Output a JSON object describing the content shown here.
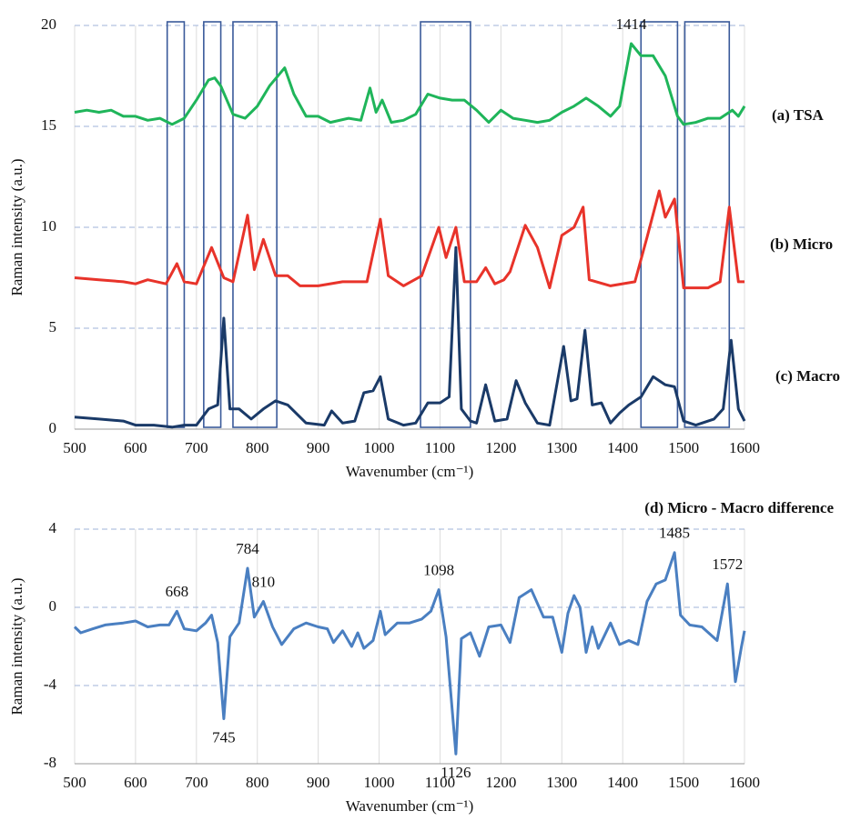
{
  "chart_data": [
    {
      "type": "line",
      "xlabel": "Wavenumber (cm⁻¹)",
      "ylabel": "Raman intensity (a.u.)",
      "xlim": [
        500,
        1600
      ],
      "xticks": [
        500,
        600,
        700,
        800,
        900,
        1000,
        1100,
        1200,
        1300,
        1400,
        1500,
        1600
      ],
      "ylim": [
        0,
        20
      ],
      "yticks": [
        0,
        5,
        10,
        15,
        20
      ],
      "grid": true,
      "regions": [
        [
          652,
          680
        ],
        [
          712,
          740
        ],
        [
          760,
          832
        ],
        [
          1068,
          1150
        ],
        [
          1430,
          1490
        ],
        [
          1502,
          1575
        ]
      ],
      "region_color": "#3a5a9a",
      "series": [
        {
          "name": "(a) TSA",
          "color": "#1fb55a",
          "x": [
            500,
            520,
            540,
            560,
            580,
            600,
            620,
            640,
            660,
            680,
            700,
            720,
            730,
            740,
            760,
            780,
            800,
            820,
            845,
            860,
            880,
            900,
            920,
            950,
            970,
            985,
            995,
            1005,
            1020,
            1040,
            1060,
            1080,
            1100,
            1120,
            1140,
            1160,
            1180,
            1200,
            1220,
            1240,
            1260,
            1280,
            1300,
            1320,
            1340,
            1360,
            1380,
            1395,
            1414,
            1430,
            1450,
            1470,
            1490,
            1500,
            1520,
            1540,
            1560,
            1580,
            1590,
            1600
          ],
          "values": [
            15.7,
            15.8,
            15.7,
            15.8,
            15.5,
            15.5,
            15.3,
            15.4,
            15.1,
            15.4,
            16.3,
            17.3,
            17.4,
            17.0,
            15.6,
            15.4,
            16.0,
            17.0,
            17.9,
            16.6,
            15.5,
            15.5,
            15.2,
            15.4,
            15.3,
            16.9,
            15.7,
            16.3,
            15.2,
            15.3,
            15.6,
            16.6,
            16.4,
            16.3,
            16.3,
            15.8,
            15.2,
            15.8,
            15.4,
            15.3,
            15.2,
            15.3,
            15.7,
            16.0,
            16.4,
            16.0,
            15.5,
            16.0,
            19.1,
            18.5,
            18.5,
            17.5,
            15.5,
            15.1,
            15.2,
            15.4,
            15.4,
            15.8,
            15.5,
            16.0
          ]
        },
        {
          "name": "(b) Micro",
          "color": "#e8332a",
          "x": [
            500,
            540,
            580,
            600,
            620,
            650,
            668,
            680,
            700,
            725,
            745,
            760,
            784,
            795,
            810,
            830,
            850,
            870,
            900,
            940,
            980,
            1002,
            1015,
            1040,
            1070,
            1098,
            1110,
            1126,
            1140,
            1160,
            1175,
            1190,
            1205,
            1215,
            1240,
            1260,
            1280,
            1300,
            1320,
            1335,
            1345,
            1380,
            1420,
            1440,
            1460,
            1470,
            1485,
            1500,
            1540,
            1560,
            1575,
            1590,
            1600
          ],
          "values": [
            7.5,
            7.4,
            7.3,
            7.2,
            7.4,
            7.2,
            8.2,
            7.3,
            7.2,
            9.0,
            7.5,
            7.3,
            10.6,
            7.9,
            9.4,
            7.6,
            7.6,
            7.1,
            7.1,
            7.3,
            7.3,
            10.4,
            7.6,
            7.1,
            7.6,
            10.0,
            8.5,
            10.0,
            7.3,
            7.3,
            8.0,
            7.2,
            7.4,
            7.8,
            10.1,
            9.0,
            7.0,
            9.6,
            10.0,
            11.0,
            7.4,
            7.1,
            7.3,
            9.5,
            11.8,
            10.5,
            11.4,
            7.0,
            7.0,
            7.3,
            11.0,
            7.3,
            7.3
          ]
        },
        {
          "name": "(c) Macro",
          "color": "#1a3a68",
          "x": [
            500,
            540,
            580,
            600,
            630,
            660,
            680,
            700,
            720,
            735,
            745,
            755,
            770,
            790,
            810,
            830,
            850,
            880,
            910,
            922,
            940,
            960,
            975,
            990,
            1002,
            1015,
            1040,
            1060,
            1080,
            1100,
            1115,
            1126,
            1135,
            1150,
            1160,
            1175,
            1190,
            1210,
            1225,
            1240,
            1260,
            1280,
            1303,
            1315,
            1325,
            1338,
            1350,
            1365,
            1380,
            1395,
            1410,
            1430,
            1450,
            1470,
            1485,
            1500,
            1520,
            1550,
            1565,
            1578,
            1590,
            1600
          ],
          "values": [
            0.6,
            0.5,
            0.4,
            0.2,
            0.2,
            0.1,
            0.2,
            0.2,
            1.0,
            1.2,
            5.5,
            1.0,
            1.0,
            0.5,
            1.0,
            1.4,
            1.2,
            0.3,
            0.2,
            0.9,
            0.3,
            0.4,
            1.8,
            1.9,
            2.6,
            0.5,
            0.2,
            0.3,
            1.3,
            1.3,
            1.6,
            9.0,
            1.0,
            0.4,
            0.3,
            2.2,
            0.4,
            0.5,
            2.4,
            1.3,
            0.3,
            0.2,
            4.1,
            1.4,
            1.5,
            4.9,
            1.2,
            1.3,
            0.3,
            0.8,
            1.2,
            1.6,
            2.6,
            2.2,
            2.1,
            0.4,
            0.2,
            0.5,
            1.0,
            4.4,
            1.0,
            0.4
          ]
        }
      ],
      "annotations": [
        {
          "x": 1414,
          "y": 19.1,
          "position": "above"
        }
      ]
    },
    {
      "type": "line",
      "title": "(d) Micro - Macro difference",
      "xlabel": "Wavenumber (cm⁻¹)",
      "ylabel": "Raman intensity (a.u.)",
      "xlim": [
        500,
        1600
      ],
      "xticks": [
        500,
        600,
        700,
        800,
        900,
        1000,
        1100,
        1200,
        1300,
        1400,
        1500,
        1600
      ],
      "ylim": [
        -8,
        4
      ],
      "yticks": [
        -8,
        -4,
        0,
        4
      ],
      "grid": true,
      "series": [
        {
          "name": "Micro - Macro",
          "color": "#4a7fc1",
          "x": [
            500,
            510,
            530,
            550,
            580,
            600,
            620,
            640,
            655,
            668,
            680,
            700,
            715,
            725,
            735,
            745,
            755,
            770,
            784,
            795,
            810,
            825,
            840,
            860,
            880,
            900,
            915,
            925,
            940,
            955,
            965,
            975,
            990,
            1002,
            1010,
            1030,
            1050,
            1070,
            1085,
            1098,
            1110,
            1126,
            1135,
            1150,
            1165,
            1180,
            1200,
            1215,
            1230,
            1250,
            1270,
            1285,
            1300,
            1310,
            1320,
            1330,
            1340,
            1350,
            1360,
            1380,
            1395,
            1410,
            1425,
            1440,
            1455,
            1470,
            1485,
            1495,
            1510,
            1530,
            1555,
            1572,
            1585,
            1595,
            1600
          ],
          "values": [
            -1.0,
            -1.3,
            -1.1,
            -0.9,
            -0.8,
            -0.7,
            -1.0,
            -0.9,
            -0.9,
            -0.2,
            -1.1,
            -1.2,
            -0.8,
            -0.4,
            -1.8,
            -5.7,
            -1.5,
            -0.8,
            2.0,
            -0.5,
            0.3,
            -1.0,
            -1.9,
            -1.1,
            -0.8,
            -1.0,
            -1.1,
            -1.8,
            -1.2,
            -2.0,
            -1.3,
            -2.1,
            -1.7,
            -0.2,
            -1.4,
            -0.8,
            -0.8,
            -0.6,
            -0.2,
            0.9,
            -1.5,
            -7.5,
            -1.6,
            -1.3,
            -2.5,
            -1.0,
            -0.9,
            -1.8,
            0.5,
            0.9,
            -0.5,
            -0.5,
            -2.3,
            -0.3,
            0.6,
            0.0,
            -2.3,
            -1.0,
            -2.1,
            -0.8,
            -1.9,
            -1.7,
            -1.9,
            0.3,
            1.2,
            1.4,
            2.8,
            -0.4,
            -0.9,
            -1.0,
            -1.7,
            1.2,
            -3.8,
            -2.0,
            -1.2
          ]
        }
      ],
      "annotations": [
        {
          "x": 668,
          "y": -0.2,
          "position": "above"
        },
        {
          "x": 745,
          "y": -5.7,
          "position": "below"
        },
        {
          "x": 784,
          "y": 2.0,
          "position": "above"
        },
        {
          "x": 810,
          "y": 0.3,
          "position": "above"
        },
        {
          "x": 1098,
          "y": 0.9,
          "position": "above"
        },
        {
          "x": 1126,
          "y": -7.5,
          "position": "below"
        },
        {
          "x": 1485,
          "y": 2.8,
          "position": "above"
        },
        {
          "x": 1572,
          "y": 1.2,
          "position": "above"
        }
      ]
    }
  ]
}
